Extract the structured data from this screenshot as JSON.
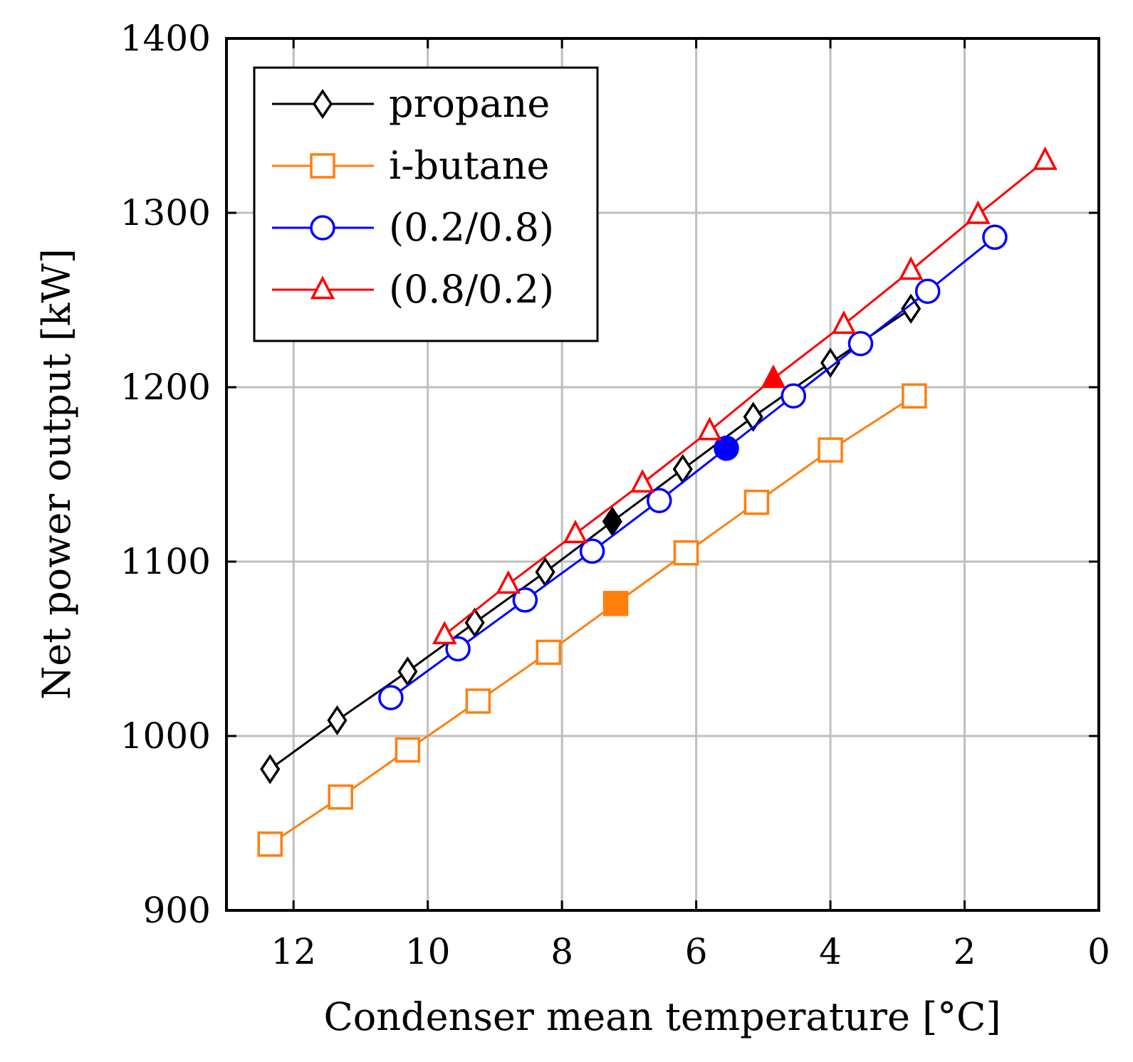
{
  "chart_data": {
    "type": "line",
    "title": "",
    "xlabel": "Condenser mean temperature [°C]",
    "ylabel": "Net power output [kW]",
    "xlim": [
      13,
      0
    ],
    "ylim": [
      900,
      1400
    ],
    "x_reversed": true,
    "grid": true,
    "legend_position": "top-left",
    "x_ticks": [
      12,
      10,
      8,
      6,
      4,
      2,
      0
    ],
    "y_ticks": [
      900,
      1000,
      1100,
      1200,
      1300,
      1400
    ],
    "series": [
      {
        "name": "propane",
        "color": "#000000",
        "marker": "diamond",
        "x": [
          12.35,
          11.35,
          10.3,
          9.3,
          8.25,
          7.25,
          6.2,
          5.15,
          4.0,
          2.8
        ],
        "y": [
          981,
          1009,
          1037,
          1065,
          1094,
          1123,
          1153,
          1183,
          1214,
          1245
        ],
        "highlight_index": 5
      },
      {
        "name": "i-butane",
        "color": "#ff7f0e",
        "marker": "square",
        "x": [
          12.35,
          11.3,
          10.3,
          9.25,
          8.2,
          7.2,
          6.15,
          5.1,
          4.0,
          2.75
        ],
        "y": [
          938,
          965,
          992,
          1020,
          1048,
          1076,
          1105,
          1134,
          1164,
          1195
        ],
        "highlight_index": 5
      },
      {
        "name": "(0.2/0.8)",
        "color": "#0000ff",
        "marker": "circle",
        "x": [
          10.55,
          9.55,
          8.55,
          7.55,
          6.55,
          5.55,
          4.55,
          3.55,
          2.55,
          1.55
        ],
        "y": [
          1022,
          1050,
          1078,
          1106,
          1135,
          1165,
          1195,
          1225,
          1255,
          1286
        ],
        "highlight_index": 5
      },
      {
        "name": "(0.8/0.2)",
        "color": "#ff0000",
        "marker": "triangle",
        "x": [
          9.75,
          8.8,
          7.8,
          6.8,
          5.8,
          4.85,
          3.8,
          2.8,
          1.8,
          0.8
        ],
        "y": [
          1058,
          1087,
          1116,
          1145,
          1175,
          1205,
          1236,
          1267,
          1299,
          1330
        ],
        "highlight_index": 5
      }
    ]
  }
}
